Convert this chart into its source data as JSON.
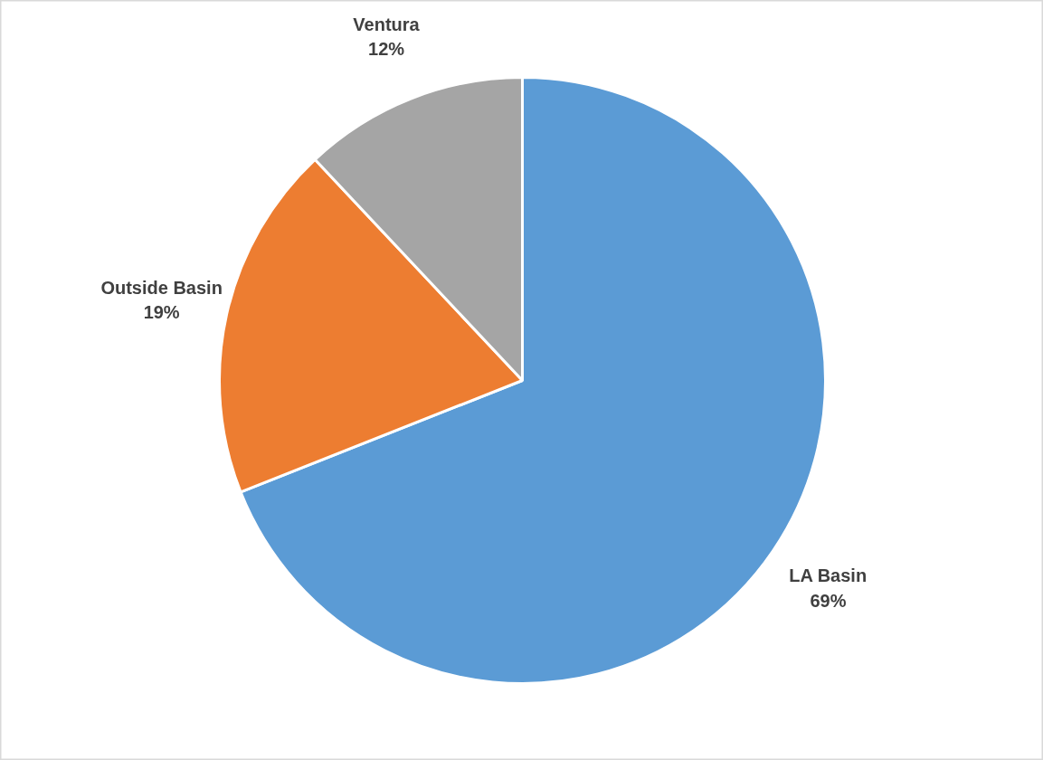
{
  "chart_data": {
    "type": "pie",
    "categories": [
      "LA Basin",
      "Outside Basin",
      "Ventura"
    ],
    "values": [
      69,
      19,
      12
    ],
    "colors": [
      "#5b9bd5",
      "#ed7d31",
      "#a5a5a5"
    ],
    "data_labels": true,
    "value_labels": [
      "69%",
      "19%",
      "12%"
    ]
  }
}
